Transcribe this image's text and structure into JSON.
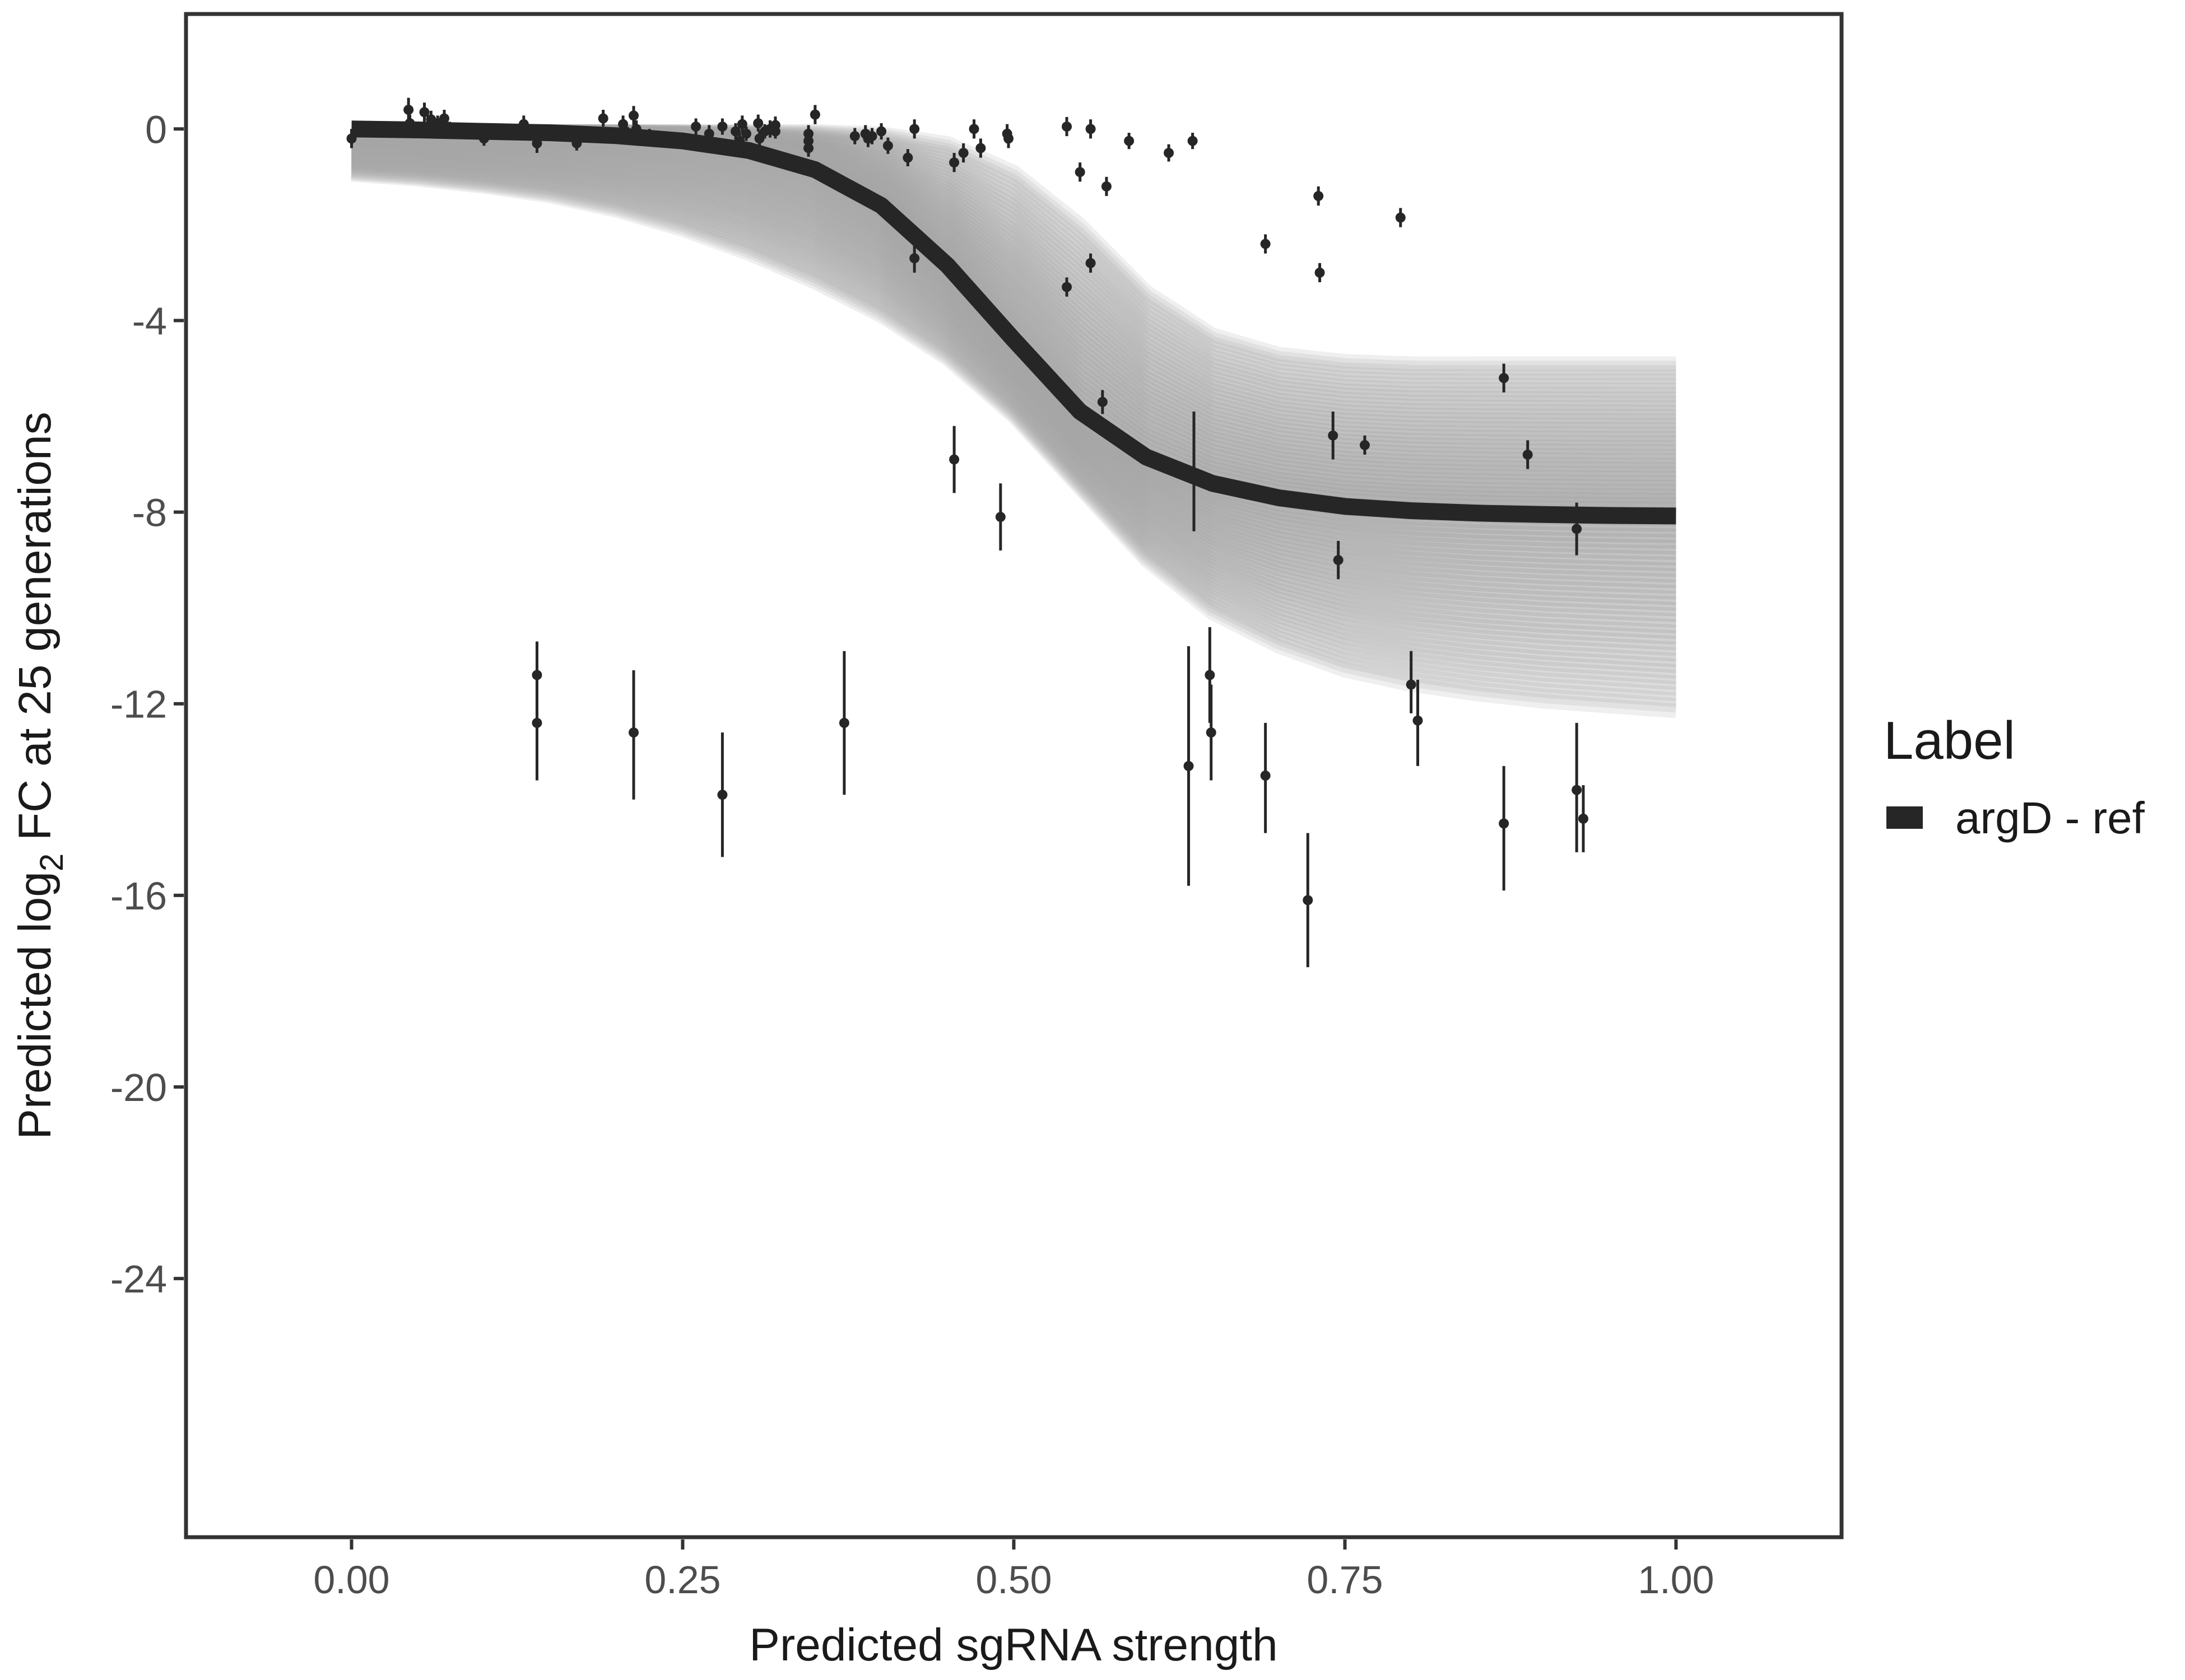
{
  "chart_data": {
    "type": "scatter",
    "title": "",
    "xlabel": "Predicted sgRNA strength",
    "ylabel": {
      "before": "Predicted  log",
      "subscript": "2",
      "after": " FC at 25 generations"
    },
    "xlim": [
      -0.125,
      1.125
    ],
    "ylim": [
      -29.4,
      2.4
    ],
    "x_ticks": [
      0.0,
      0.25,
      0.5,
      0.75,
      1.0
    ],
    "x_tick_labels": [
      "0.00",
      "0.25",
      "0.50",
      "0.75",
      "1.00"
    ],
    "y_ticks": [
      0,
      -4,
      -8,
      -12,
      -16,
      -20,
      -24
    ],
    "y_tick_labels": [
      "0",
      "-4",
      "-8",
      "-12",
      "-16",
      "-20",
      "-24"
    ],
    "grid": false,
    "legend": {
      "title": "Label",
      "position": "right",
      "entries": [
        {
          "label": "argD - ref",
          "color": "#262626"
        }
      ]
    },
    "colors": {
      "fit": "#262626",
      "posterior": "#a6a6a6",
      "points": "#262626"
    },
    "fit_curve": {
      "name": "argD - ref",
      "x": [
        0.0,
        0.05,
        0.1,
        0.15,
        0.2,
        0.25,
        0.3,
        0.35,
        0.4,
        0.45,
        0.5,
        0.55,
        0.6,
        0.65,
        0.7,
        0.75,
        0.8,
        0.85,
        0.9,
        0.95,
        1.0
      ],
      "y": [
        0.0,
        -0.02,
        -0.05,
        -0.08,
        -0.14,
        -0.25,
        -0.45,
        -0.85,
        -1.6,
        -2.85,
        -4.4,
        -5.9,
        -6.85,
        -7.4,
        -7.7,
        -7.88,
        -7.97,
        -8.02,
        -8.05,
        -8.07,
        -8.08
      ]
    },
    "posterior_band": {
      "x": [
        0.0,
        0.05,
        0.1,
        0.15,
        0.2,
        0.25,
        0.3,
        0.35,
        0.4,
        0.45,
        0.5,
        0.55,
        0.6,
        0.65,
        0.7,
        0.75,
        0.8,
        0.85,
        0.9,
        0.95,
        1.0
      ],
      "upper": [
        -0.05,
        -0.05,
        -0.05,
        -0.05,
        -0.05,
        -0.05,
        -0.05,
        -0.05,
        -0.1,
        -0.3,
        -0.9,
        -2.0,
        -3.4,
        -4.3,
        -4.7,
        -4.85,
        -4.9,
        -4.9,
        -4.9,
        -4.9,
        -4.9
      ],
      "lower": [
        -0.95,
        -1.05,
        -1.2,
        -1.4,
        -1.7,
        -2.1,
        -2.6,
        -3.2,
        -3.9,
        -4.8,
        -6.0,
        -7.5,
        -9.0,
        -10.1,
        -10.8,
        -11.3,
        -11.6,
        -11.8,
        -11.95,
        -12.05,
        -12.15
      ]
    },
    "points": [
      {
        "x": 0.0,
        "y": -0.2,
        "lo": -0.4,
        "hi": 0.0
      },
      {
        "x": 0.043,
        "y": 0.4,
        "lo": 0.15,
        "hi": 0.65
      },
      {
        "x": 0.044,
        "y": 0.12,
        "lo": -0.05,
        "hi": 0.3
      },
      {
        "x": 0.055,
        "y": 0.35,
        "lo": 0.15,
        "hi": 0.55
      },
      {
        "x": 0.06,
        "y": 0.2,
        "lo": 0.02,
        "hi": 0.38
      },
      {
        "x": 0.065,
        "y": 0.12,
        "lo": -0.05,
        "hi": 0.28
      },
      {
        "x": 0.07,
        "y": 0.22,
        "lo": 0.05,
        "hi": 0.4
      },
      {
        "x": 0.074,
        "y": 0.0,
        "lo": -0.15,
        "hi": 0.15
      },
      {
        "x": 0.1,
        "y": -0.2,
        "lo": -0.35,
        "hi": -0.05
      },
      {
        "x": 0.13,
        "y": 0.1,
        "lo": -0.08,
        "hi": 0.28
      },
      {
        "x": 0.135,
        "y": -0.05,
        "lo": -0.2,
        "hi": 0.1
      },
      {
        "x": 0.14,
        "y": -0.3,
        "lo": -0.5,
        "hi": -0.1
      },
      {
        "x": 0.14,
        "y": -11.4,
        "lo": -12.4,
        "hi": -10.7
      },
      {
        "x": 0.14,
        "y": -12.4,
        "lo": -13.6,
        "hi": -11.3
      },
      {
        "x": 0.17,
        "y": -0.3,
        "lo": -0.45,
        "hi": -0.15
      },
      {
        "x": 0.19,
        "y": 0.22,
        "lo": 0.05,
        "hi": 0.4
      },
      {
        "x": 0.205,
        "y": 0.1,
        "lo": -0.08,
        "hi": 0.28
      },
      {
        "x": 0.207,
        "y": -0.05,
        "lo": -0.2,
        "hi": 0.1
      },
      {
        "x": 0.213,
        "y": 0.28,
        "lo": 0.08,
        "hi": 0.48
      },
      {
        "x": 0.215,
        "y": 0.0,
        "lo": -0.18,
        "hi": 0.18
      },
      {
        "x": 0.213,
        "y": -12.6,
        "lo": -14.0,
        "hi": -11.3
      },
      {
        "x": 0.225,
        "y": -0.15,
        "lo": -0.3,
        "hi": 0.0
      },
      {
        "x": 0.235,
        "y": -0.2,
        "lo": -0.35,
        "hi": -0.05
      },
      {
        "x": 0.26,
        "y": 0.05,
        "lo": -0.12,
        "hi": 0.22
      },
      {
        "x": 0.27,
        "y": -0.1,
        "lo": -0.28,
        "hi": 0.08
      },
      {
        "x": 0.28,
        "y": 0.05,
        "lo": -0.12,
        "hi": 0.22
      },
      {
        "x": 0.28,
        "y": -13.9,
        "lo": -15.2,
        "hi": -12.6
      },
      {
        "x": 0.29,
        "y": -0.05,
        "lo": -0.22,
        "hi": 0.12
      },
      {
        "x": 0.293,
        "y": -0.25,
        "lo": -0.42,
        "hi": -0.08
      },
      {
        "x": 0.295,
        "y": 0.1,
        "lo": -0.08,
        "hi": 0.28
      },
      {
        "x": 0.298,
        "y": -0.1,
        "lo": -0.25,
        "hi": 0.05
      },
      {
        "x": 0.307,
        "y": 0.12,
        "lo": -0.05,
        "hi": 0.3
      },
      {
        "x": 0.308,
        "y": -0.2,
        "lo": -0.38,
        "hi": -0.02
      },
      {
        "x": 0.312,
        "y": -0.05,
        "lo": -0.2,
        "hi": 0.1
      },
      {
        "x": 0.316,
        "y": 0.0,
        "lo": -0.18,
        "hi": 0.18
      },
      {
        "x": 0.32,
        "y": 0.08,
        "lo": -0.1,
        "hi": 0.26
      },
      {
        "x": 0.32,
        "y": -0.05,
        "lo": -0.2,
        "hi": 0.1
      },
      {
        "x": 0.345,
        "y": -0.1,
        "lo": -0.28,
        "hi": 0.08
      },
      {
        "x": 0.345,
        "y": -0.25,
        "lo": -0.42,
        "hi": -0.08
      },
      {
        "x": 0.345,
        "y": -0.4,
        "lo": -0.58,
        "hi": -0.22
      },
      {
        "x": 0.35,
        "y": 0.3,
        "lo": 0.1,
        "hi": 0.5
      },
      {
        "x": 0.372,
        "y": -12.4,
        "lo": -13.9,
        "hi": -10.9
      },
      {
        "x": 0.38,
        "y": -0.15,
        "lo": -0.32,
        "hi": 0.02
      },
      {
        "x": 0.388,
        "y": -0.1,
        "lo": -0.28,
        "hi": 0.08
      },
      {
        "x": 0.39,
        "y": -0.2,
        "lo": -0.38,
        "hi": -0.02
      },
      {
        "x": 0.393,
        "y": -0.15,
        "lo": -0.32,
        "hi": 0.02
      },
      {
        "x": 0.4,
        "y": -0.05,
        "lo": -0.22,
        "hi": 0.12
      },
      {
        "x": 0.405,
        "y": -0.35,
        "lo": -0.52,
        "hi": -0.18
      },
      {
        "x": 0.42,
        "y": -0.6,
        "lo": -0.78,
        "hi": -0.42
      },
      {
        "x": 0.425,
        "y": 0.0,
        "lo": -0.2,
        "hi": 0.2
      },
      {
        "x": 0.425,
        "y": -2.7,
        "lo": -3.0,
        "hi": -2.4
      },
      {
        "x": 0.455,
        "y": -0.7,
        "lo": -0.9,
        "hi": -0.5
      },
      {
        "x": 0.455,
        "y": -6.9,
        "lo": -7.6,
        "hi": -6.2
      },
      {
        "x": 0.462,
        "y": -0.5,
        "lo": -0.7,
        "hi": -0.3
      },
      {
        "x": 0.47,
        "y": 0.0,
        "lo": -0.2,
        "hi": 0.2
      },
      {
        "x": 0.475,
        "y": -0.4,
        "lo": -0.6,
        "hi": -0.2
      },
      {
        "x": 0.49,
        "y": -8.1,
        "lo": -8.8,
        "hi": -7.4
      },
      {
        "x": 0.495,
        "y": -0.1,
        "lo": -0.3,
        "hi": 0.1
      },
      {
        "x": 0.496,
        "y": -0.2,
        "lo": -0.4,
        "hi": 0.0
      },
      {
        "x": 0.54,
        "y": 0.05,
        "lo": -0.15,
        "hi": 0.25
      },
      {
        "x": 0.54,
        "y": -3.3,
        "lo": -3.5,
        "hi": -3.1
      },
      {
        "x": 0.55,
        "y": -0.9,
        "lo": -1.1,
        "hi": -0.7
      },
      {
        "x": 0.558,
        "y": 0.0,
        "lo": -0.2,
        "hi": 0.2
      },
      {
        "x": 0.558,
        "y": -2.8,
        "lo": -3.0,
        "hi": -2.6
      },
      {
        "x": 0.567,
        "y": -5.7,
        "lo": -5.95,
        "hi": -5.45
      },
      {
        "x": 0.57,
        "y": -1.2,
        "lo": -1.4,
        "hi": -1.0
      },
      {
        "x": 0.587,
        "y": -0.25,
        "lo": -0.42,
        "hi": -0.08
      },
      {
        "x": 0.617,
        "y": -0.5,
        "lo": -0.68,
        "hi": -0.32
      },
      {
        "x": 0.632,
        "y": -13.3,
        "lo": -15.8,
        "hi": -10.8
      },
      {
        "x": 0.635,
        "y": -0.25,
        "lo": -0.42,
        "hi": -0.08
      },
      {
        "x": 0.636,
        "y": -7.2,
        "lo": -8.4,
        "hi": -5.9
      },
      {
        "x": 0.648,
        "y": -11.4,
        "lo": -12.4,
        "hi": -10.4
      },
      {
        "x": 0.649,
        "y": -12.6,
        "lo": -13.6,
        "hi": -11.6
      },
      {
        "x": 0.69,
        "y": -2.4,
        "lo": -2.6,
        "hi": -2.2
      },
      {
        "x": 0.69,
        "y": -13.5,
        "lo": -14.7,
        "hi": -12.4
      },
      {
        "x": 0.722,
        "y": -16.1,
        "lo": -17.5,
        "hi": -14.7
      },
      {
        "x": 0.73,
        "y": -1.4,
        "lo": -1.6,
        "hi": -1.2
      },
      {
        "x": 0.731,
        "y": -3.0,
        "lo": -3.2,
        "hi": -2.8
      },
      {
        "x": 0.741,
        "y": -6.4,
        "lo": -6.9,
        "hi": -5.9
      },
      {
        "x": 0.745,
        "y": -9.0,
        "lo": -9.4,
        "hi": -8.6
      },
      {
        "x": 0.765,
        "y": -6.6,
        "lo": -6.8,
        "hi": -6.4
      },
      {
        "x": 0.792,
        "y": -1.85,
        "lo": -2.05,
        "hi": -1.65
      },
      {
        "x": 0.8,
        "y": -11.6,
        "lo": -12.2,
        "hi": -10.9
      },
      {
        "x": 0.805,
        "y": -12.35,
        "lo": -13.3,
        "hi": -11.5
      },
      {
        "x": 0.87,
        "y": -5.2,
        "lo": -5.5,
        "hi": -4.9
      },
      {
        "x": 0.87,
        "y": -14.5,
        "lo": -15.9,
        "hi": -13.3
      },
      {
        "x": 0.888,
        "y": -6.8,
        "lo": -7.1,
        "hi": -6.5
      },
      {
        "x": 0.925,
        "y": -8.35,
        "lo": -8.9,
        "hi": -7.8
      },
      {
        "x": 0.925,
        "y": -13.8,
        "lo": -15.1,
        "hi": -12.4
      },
      {
        "x": 0.93,
        "y": -14.4,
        "lo": -15.1,
        "hi": -13.7
      }
    ]
  }
}
